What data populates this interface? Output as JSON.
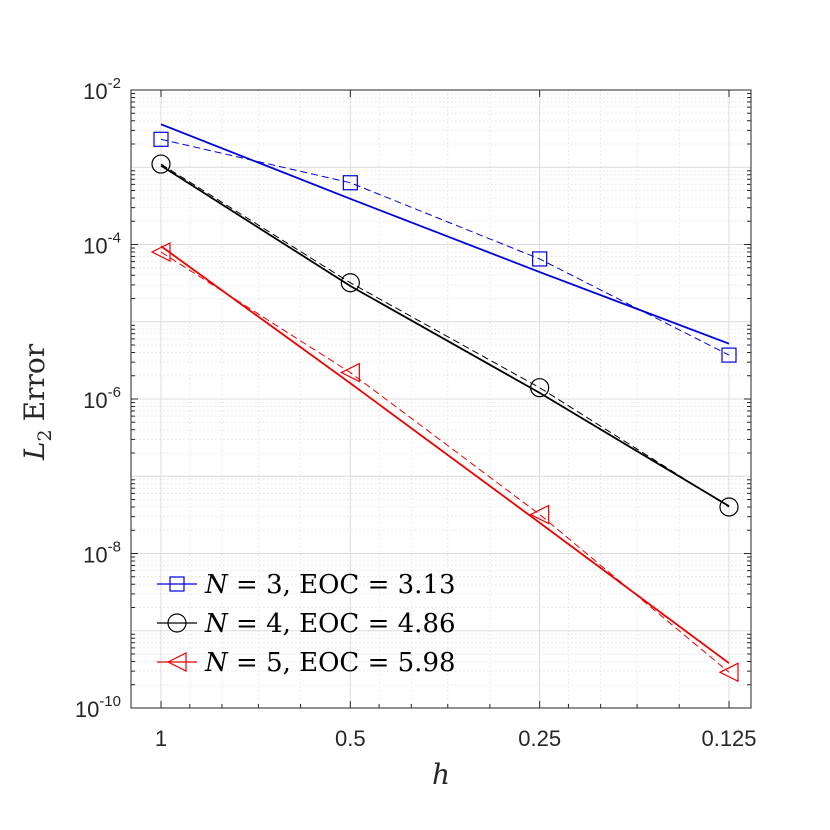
{
  "chart_data": {
    "type": "line",
    "title": "",
    "xlabel": "h",
    "ylabel_main": "L",
    "ylabel_sub": "2",
    "ylabel_rest": "Error",
    "x_scale": "log2-reversed",
    "y_scale": "log",
    "xlim": [
      1.0,
      0.125
    ],
    "ylim": [
      1e-10,
      0.01
    ],
    "x_ticks": [
      {
        "value": 1,
        "label": "1"
      },
      {
        "value": 0.5,
        "label": "0.5"
      },
      {
        "value": 0.25,
        "label": "0.25"
      },
      {
        "value": 0.125,
        "label": "0.125"
      }
    ],
    "y_ticks": [
      {
        "value": 0.01,
        "base": "10",
        "exp": "-2"
      },
      {
        "value": 0.0001,
        "base": "10",
        "exp": "-4"
      },
      {
        "value": 1e-06,
        "base": "10",
        "exp": "-6"
      },
      {
        "value": 1e-08,
        "base": "10",
        "exp": "-8"
      },
      {
        "value": 1e-10,
        "base": "10",
        "exp": "-10"
      }
    ],
    "grid": true,
    "legend_position": "bottom-left",
    "x": [
      1,
      0.5,
      0.25,
      0.125
    ],
    "series": [
      {
        "name": "N = 3, EOC = 3.13",
        "legend_var": "N",
        "legend_eq": " = 3, EOC = 3.13",
        "color": "#0000dd",
        "marker": "square",
        "values": [
          0.0023,
          0.00063,
          6.5e-05,
          3.7e-06
        ],
        "fit": [
          0.0036,
          0.00039,
          4.4e-05,
          5.2e-06
        ]
      },
      {
        "name": "N = 4, EOC = 4.86",
        "legend_var": "N",
        "legend_eq": " = 4, EOC = 4.86",
        "color": "#000000",
        "marker": "circle",
        "values": [
          0.0011,
          3.2e-05,
          1.4e-06,
          4e-08
        ],
        "fit": [
          0.00105,
          2.9e-05,
          1.2e-06,
          4.1e-08
        ]
      },
      {
        "name": "N = 5, EOC = 5.98",
        "legend_var": "N",
        "legend_eq": " = 5, EOC = 5.98",
        "color": "#ee0000",
        "marker": "triangle-left",
        "values": [
          8e-05,
          2.2e-06,
          3.2e-08,
          2.9e-10
        ],
        "fit": [
          9.5e-05,
          1.6e-06,
          2.5e-08,
          3.8e-10
        ]
      }
    ]
  }
}
